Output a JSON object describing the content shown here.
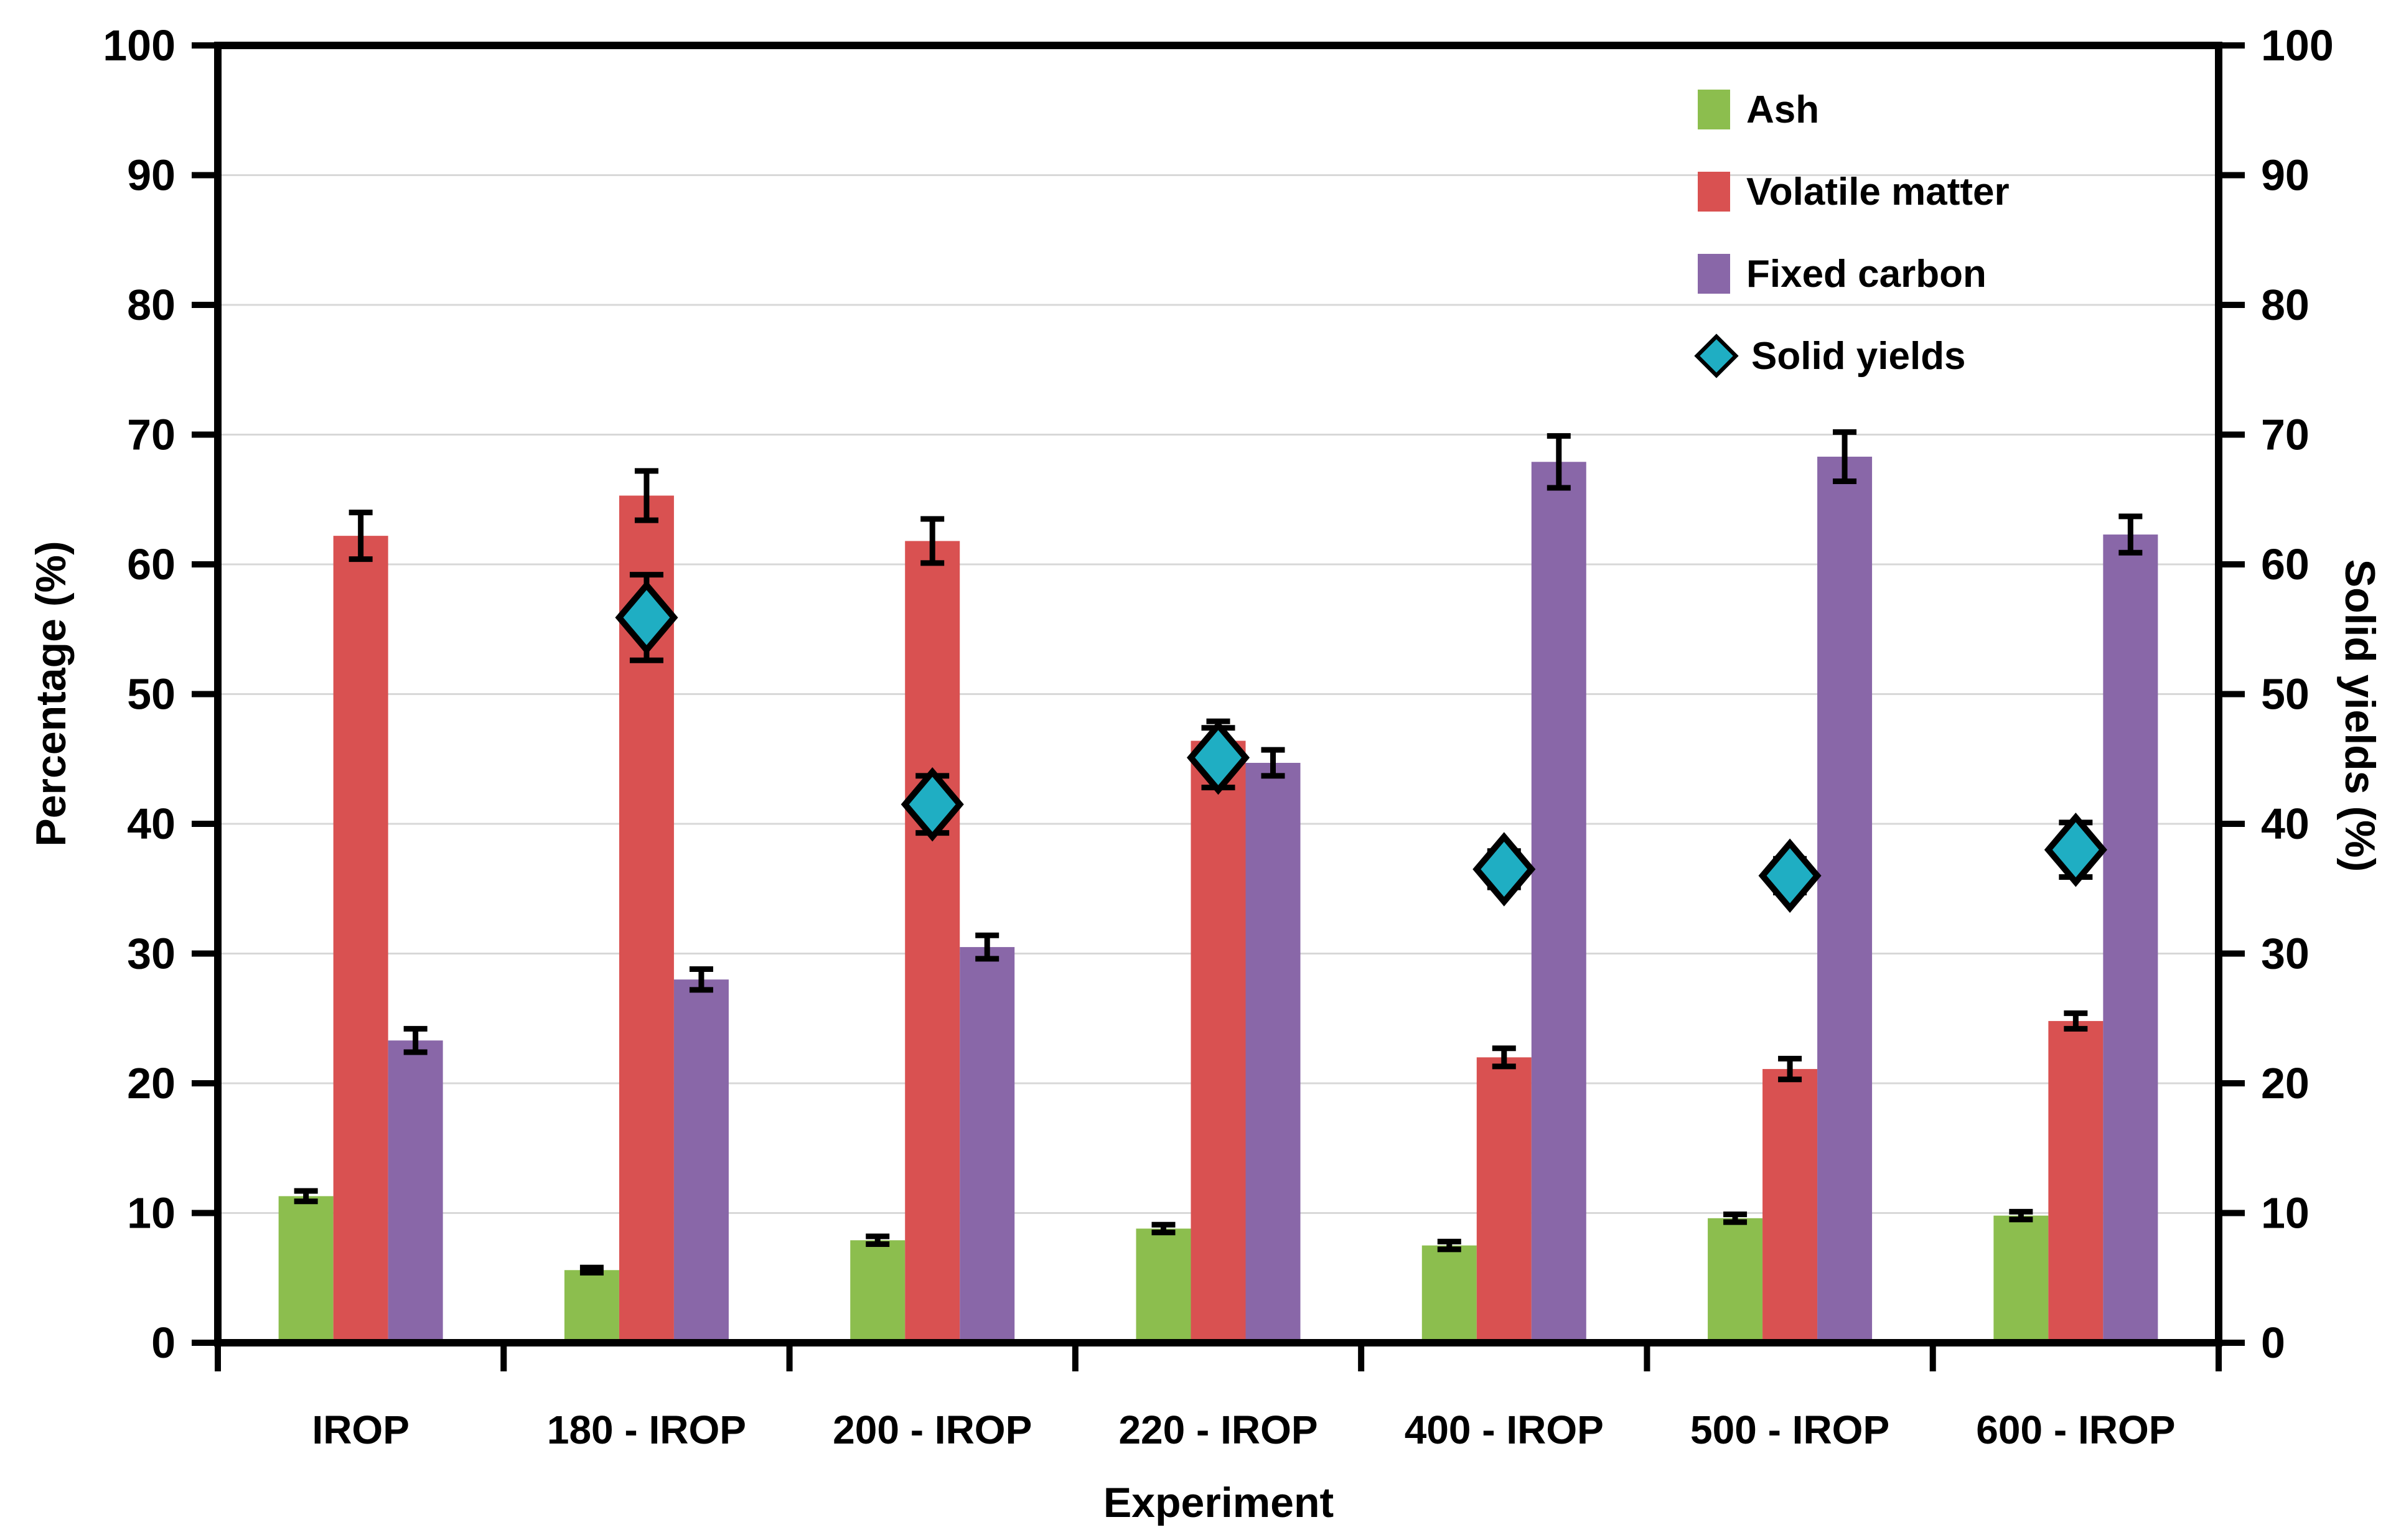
{
  "chart_data": {
    "type": "bar",
    "categories": [
      "IROP",
      "180 - IROP",
      "200 - IROP",
      "220 - IROP",
      "400 - IROP",
      "500 - IROP",
      "600 - IROP"
    ],
    "series": [
      {
        "name": "Ash",
        "type": "bar",
        "color": "#8cbe4e",
        "values": [
          11.3,
          5.6,
          7.9,
          8.8,
          7.5,
          9.6,
          9.8
        ],
        "errors": [
          0.4,
          0.2,
          0.3,
          0.3,
          0.3,
          0.3,
          0.3
        ]
      },
      {
        "name": "Volatile matter",
        "type": "bar",
        "color": "#d95151",
        "values": [
          62.2,
          65.3,
          61.8,
          46.4,
          22.0,
          21.1,
          24.8
        ],
        "errors": [
          1.8,
          1.9,
          1.7,
          1.5,
          0.7,
          0.8,
          0.6
        ]
      },
      {
        "name": "Fixed carbon",
        "type": "bar",
        "color": "#8967a8",
        "values": [
          23.3,
          28.0,
          30.5,
          44.7,
          67.9,
          68.3,
          62.3
        ],
        "errors": [
          0.9,
          0.8,
          0.9,
          1.0,
          2.0,
          1.9,
          1.4
        ]
      },
      {
        "name": "Solid yields",
        "type": "scatter",
        "marker": "diamond",
        "color": "#1faec3",
        "axis": "right",
        "values": [
          null,
          55.9,
          41.5,
          45.1,
          36.5,
          36.0,
          38.0
        ],
        "errors": [
          null,
          3.3,
          2.2,
          2.3,
          1.4,
          1.3,
          2.1
        ]
      }
    ],
    "xlabel": "Experiment",
    "ylabel_left": "Percentage (%)",
    "ylabel_right": "Solid yields (%)",
    "ylim": [
      0,
      100
    ],
    "yticks": [
      0,
      10,
      20,
      30,
      40,
      50,
      60,
      70,
      80,
      90,
      100
    ],
    "grid": true,
    "legend_position": "top-right"
  },
  "style": {
    "axis_color": "#000000",
    "gridline_color": "#d8d8d8",
    "errorbar_color": "#000000",
    "background": "#ffffff"
  }
}
